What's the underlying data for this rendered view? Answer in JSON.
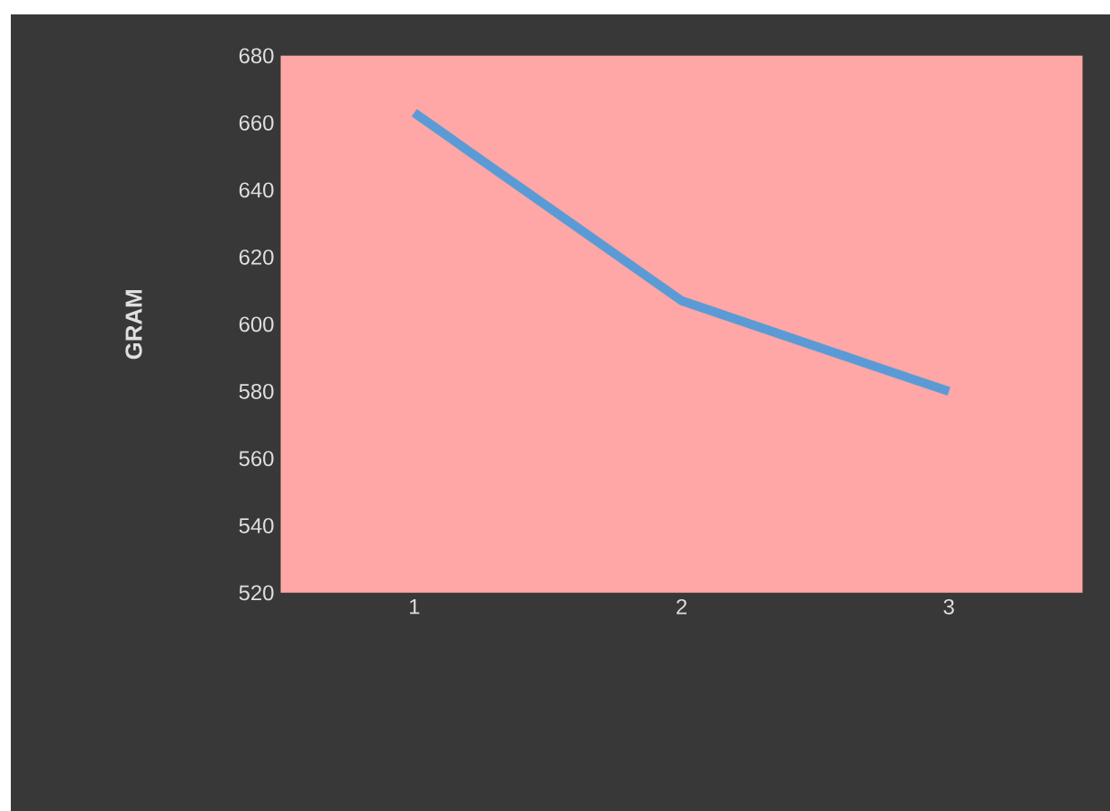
{
  "chart_data": {
    "type": "line",
    "ylabel": "GRAM",
    "categories": [
      "1",
      "2",
      "3"
    ],
    "series": [
      {
        "color": "#5b9bd5",
        "values": [
          663,
          607,
          580
        ]
      }
    ],
    "ylim": [
      520,
      680
    ],
    "yticks": [
      520,
      540,
      560,
      580,
      600,
      620,
      640,
      660,
      680
    ],
    "grid": false,
    "marker": "none",
    "line_style": "solid"
  }
}
